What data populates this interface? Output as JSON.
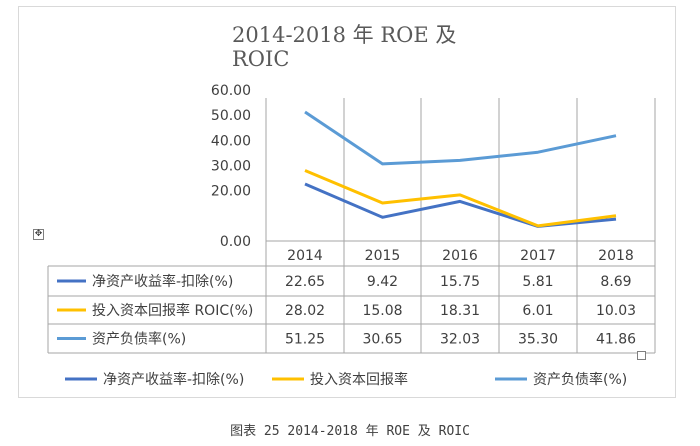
{
  "caption": "图表 25 2014-2018 年 ROE 及 ROIC",
  "icons": {
    "move_handle": "move-arrows-icon",
    "resize_handle": "resize-square-icon"
  },
  "chart_data": {
    "type": "line",
    "title_line1": "2014-2018 年 ROE 及",
    "title_line2": "ROIC",
    "categories": [
      "2014",
      "2015",
      "2016",
      "2017",
      "2018"
    ],
    "y_ticks": [
      "0.00",
      "20.00",
      "30.00",
      "40.00",
      "50.00",
      "60.00"
    ],
    "ylim": [
      0,
      60
    ],
    "legend_position": "bottom",
    "series": [
      {
        "name": "净资产收益率-扣除(%)",
        "legend_name": "净资产收益率-扣除(%)",
        "color": "#4472c4",
        "values": [
          22.65,
          9.42,
          15.75,
          5.81,
          8.69
        ]
      },
      {
        "name": "投入资本回报率 ROIC(%)",
        "legend_name": "投入资本回报率",
        "color": "#ffc000",
        "values": [
          28.02,
          15.08,
          18.31,
          6.01,
          10.03
        ]
      },
      {
        "name": "资产负债率(%)",
        "legend_name": "资产负债率(%)",
        "color": "#5b9bd5",
        "values": [
          51.25,
          30.65,
          32.03,
          35.3,
          41.86
        ]
      }
    ],
    "table_values": [
      [
        "22.65",
        "9.42",
        "15.75",
        "5.81",
        "8.69"
      ],
      [
        "28.02",
        "15.08",
        "18.31",
        "6.01",
        "10.03"
      ],
      [
        "51.25",
        "30.65",
        "32.03",
        "35.30",
        "41.86"
      ]
    ]
  }
}
